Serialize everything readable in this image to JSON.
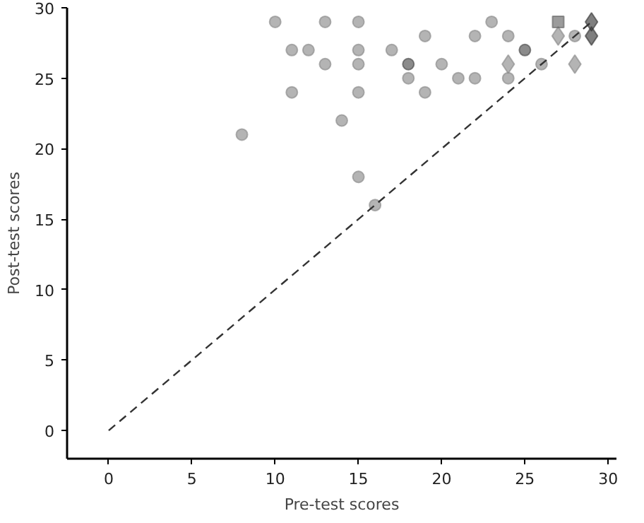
{
  "chart_data": {
    "type": "scatter",
    "xlabel": "Pre-test scores",
    "ylabel": "Post-test scores",
    "xlim": [
      -2.5,
      30.5
    ],
    "ylim": [
      -2,
      30
    ],
    "xticks": [
      0,
      5,
      10,
      15,
      20,
      25,
      30
    ],
    "yticks": [
      0,
      5,
      10,
      15,
      20,
      25,
      30
    ],
    "grid": false,
    "series": [
      {
        "color": "#8c8c8c",
        "marker": "circle",
        "x": [
          8,
          10,
          11,
          11,
          12,
          13,
          13,
          14,
          15,
          15,
          15,
          15,
          15,
          16,
          17,
          18,
          19,
          19,
          20,
          21,
          22,
          22,
          23,
          24,
          24,
          26,
          28
        ],
        "values": [
          21,
          29,
          27,
          24,
          27,
          29,
          26,
          22,
          29,
          27,
          26,
          24,
          18,
          16,
          27,
          25,
          28,
          24,
          26,
          25,
          28,
          25,
          29,
          28,
          25,
          26,
          28
        ]
      },
      {
        "color": "#4d4d4d",
        "marker": "circle",
        "x": [
          18,
          25
        ],
        "values": [
          26,
          27
        ]
      },
      {
        "color": "#8c8c8c",
        "marker": "diamond",
        "x": [
          24,
          27,
          28
        ],
        "values": [
          26,
          28,
          26
        ]
      },
      {
        "color": "#3a3a3a",
        "marker": "diamond",
        "x": [
          29,
          29
        ],
        "values": [
          29,
          28
        ]
      },
      {
        "color": "#666666",
        "marker": "square",
        "x": [
          27
        ],
        "values": [
          29
        ]
      },
      {
        "type": "line",
        "color": "#333333",
        "line_style": "dashed",
        "marker": "none",
        "x": [
          0,
          29
        ],
        "values": [
          0,
          29
        ]
      }
    ]
  }
}
